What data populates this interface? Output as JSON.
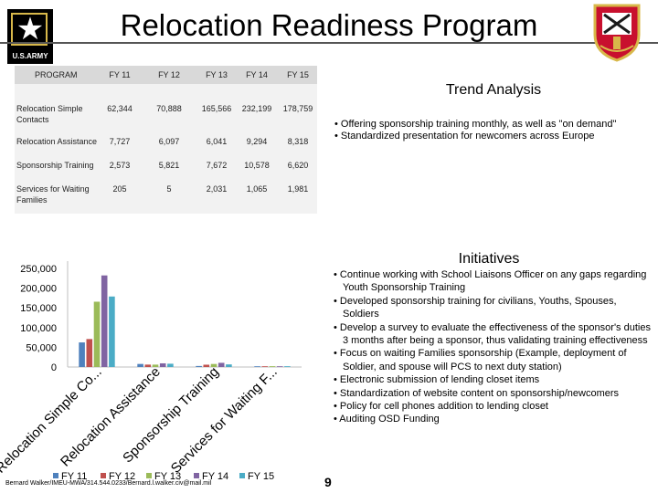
{
  "header": {
    "title": "Relocation Readiness Program",
    "left_logo_text": "U.S.ARMY"
  },
  "table": {
    "columns": [
      "PROGRAM",
      "FY 11",
      "FY 12",
      "FY 13",
      "FY 14",
      "FY 15"
    ],
    "rows": [
      {
        "label": "Relocation Simple Contacts",
        "values": [
          "62,344",
          "70,888",
          "165,566",
          "232,199",
          "178,759"
        ]
      },
      {
        "label": "Relocation Assistance",
        "values": [
          "7,727",
          "6,097",
          "6,041",
          "9,294",
          "8,318"
        ]
      },
      {
        "label": "Sponsorship Training",
        "values": [
          "2,573",
          "5,821",
          "7,672",
          "10,578",
          "6,620"
        ]
      },
      {
        "label": "Services for Waiting Families",
        "values": [
          "205",
          "5",
          "2,031",
          "1,065",
          "1,981"
        ]
      }
    ]
  },
  "trend": {
    "title": "Trend Analysis",
    "bullets": [
      "• Offering sponsorship training monthly, as well as \"on demand\"",
      "• Standardized presentation for newcomers across Europe"
    ]
  },
  "initiatives": {
    "title": "Initiatives",
    "bullets": [
      "• Continue working with School Liaisons Officer on any gaps regarding Youth Sponsorship Training",
      "• Developed sponsorship training for civilians, Youths, Spouses, Soldiers",
      "• Develop a survey to evaluate the effectiveness of the sponsor's duties 3 months after being a sponsor, thus validating training effectiveness",
      "• Focus on waiting Families sponsorship (Example, deployment of Soldier, and spouse will PCS to next duty station)",
      "• Electronic submission of lending closet items",
      "• Standardization of website content on sponsorship/newcomers",
      "• Policy for cell phones addition to lending closet",
      "• Auditing OSD Funding"
    ]
  },
  "chart_data": {
    "type": "bar",
    "categories": [
      "Relocation Simple Co...",
      "Relocation Assistance",
      "Sponsorship Training",
      "Services for Waiting F..."
    ],
    "series": [
      {
        "name": "FY 11",
        "values": [
          62344,
          7727,
          2573,
          205
        ],
        "color": "#4f81bd"
      },
      {
        "name": "FY 12",
        "values": [
          70888,
          6097,
          5821,
          5
        ],
        "color": "#c0504d"
      },
      {
        "name": "FY 13",
        "values": [
          165566,
          6041,
          7672,
          2031
        ],
        "color": "#9bbb59"
      },
      {
        "name": "FY 14",
        "values": [
          232199,
          9294,
          10578,
          1065
        ],
        "color": "#8064a2"
      },
      {
        "name": "FY 15",
        "values": [
          178759,
          8318,
          6620,
          1981
        ],
        "color": "#4bacc6"
      }
    ],
    "y_ticks": [
      "250,000",
      "200,000",
      "150,000",
      "100,000",
      "50,000",
      "0"
    ],
    "ylim": [
      0,
      250000
    ],
    "legend_position": "bottom",
    "grid": false
  },
  "footer": {
    "contact": "Bernard Walker/IMEU-MWA/314.544.0233/Bernard.l.walker.civ@mail.mil",
    "page_number": "9"
  }
}
